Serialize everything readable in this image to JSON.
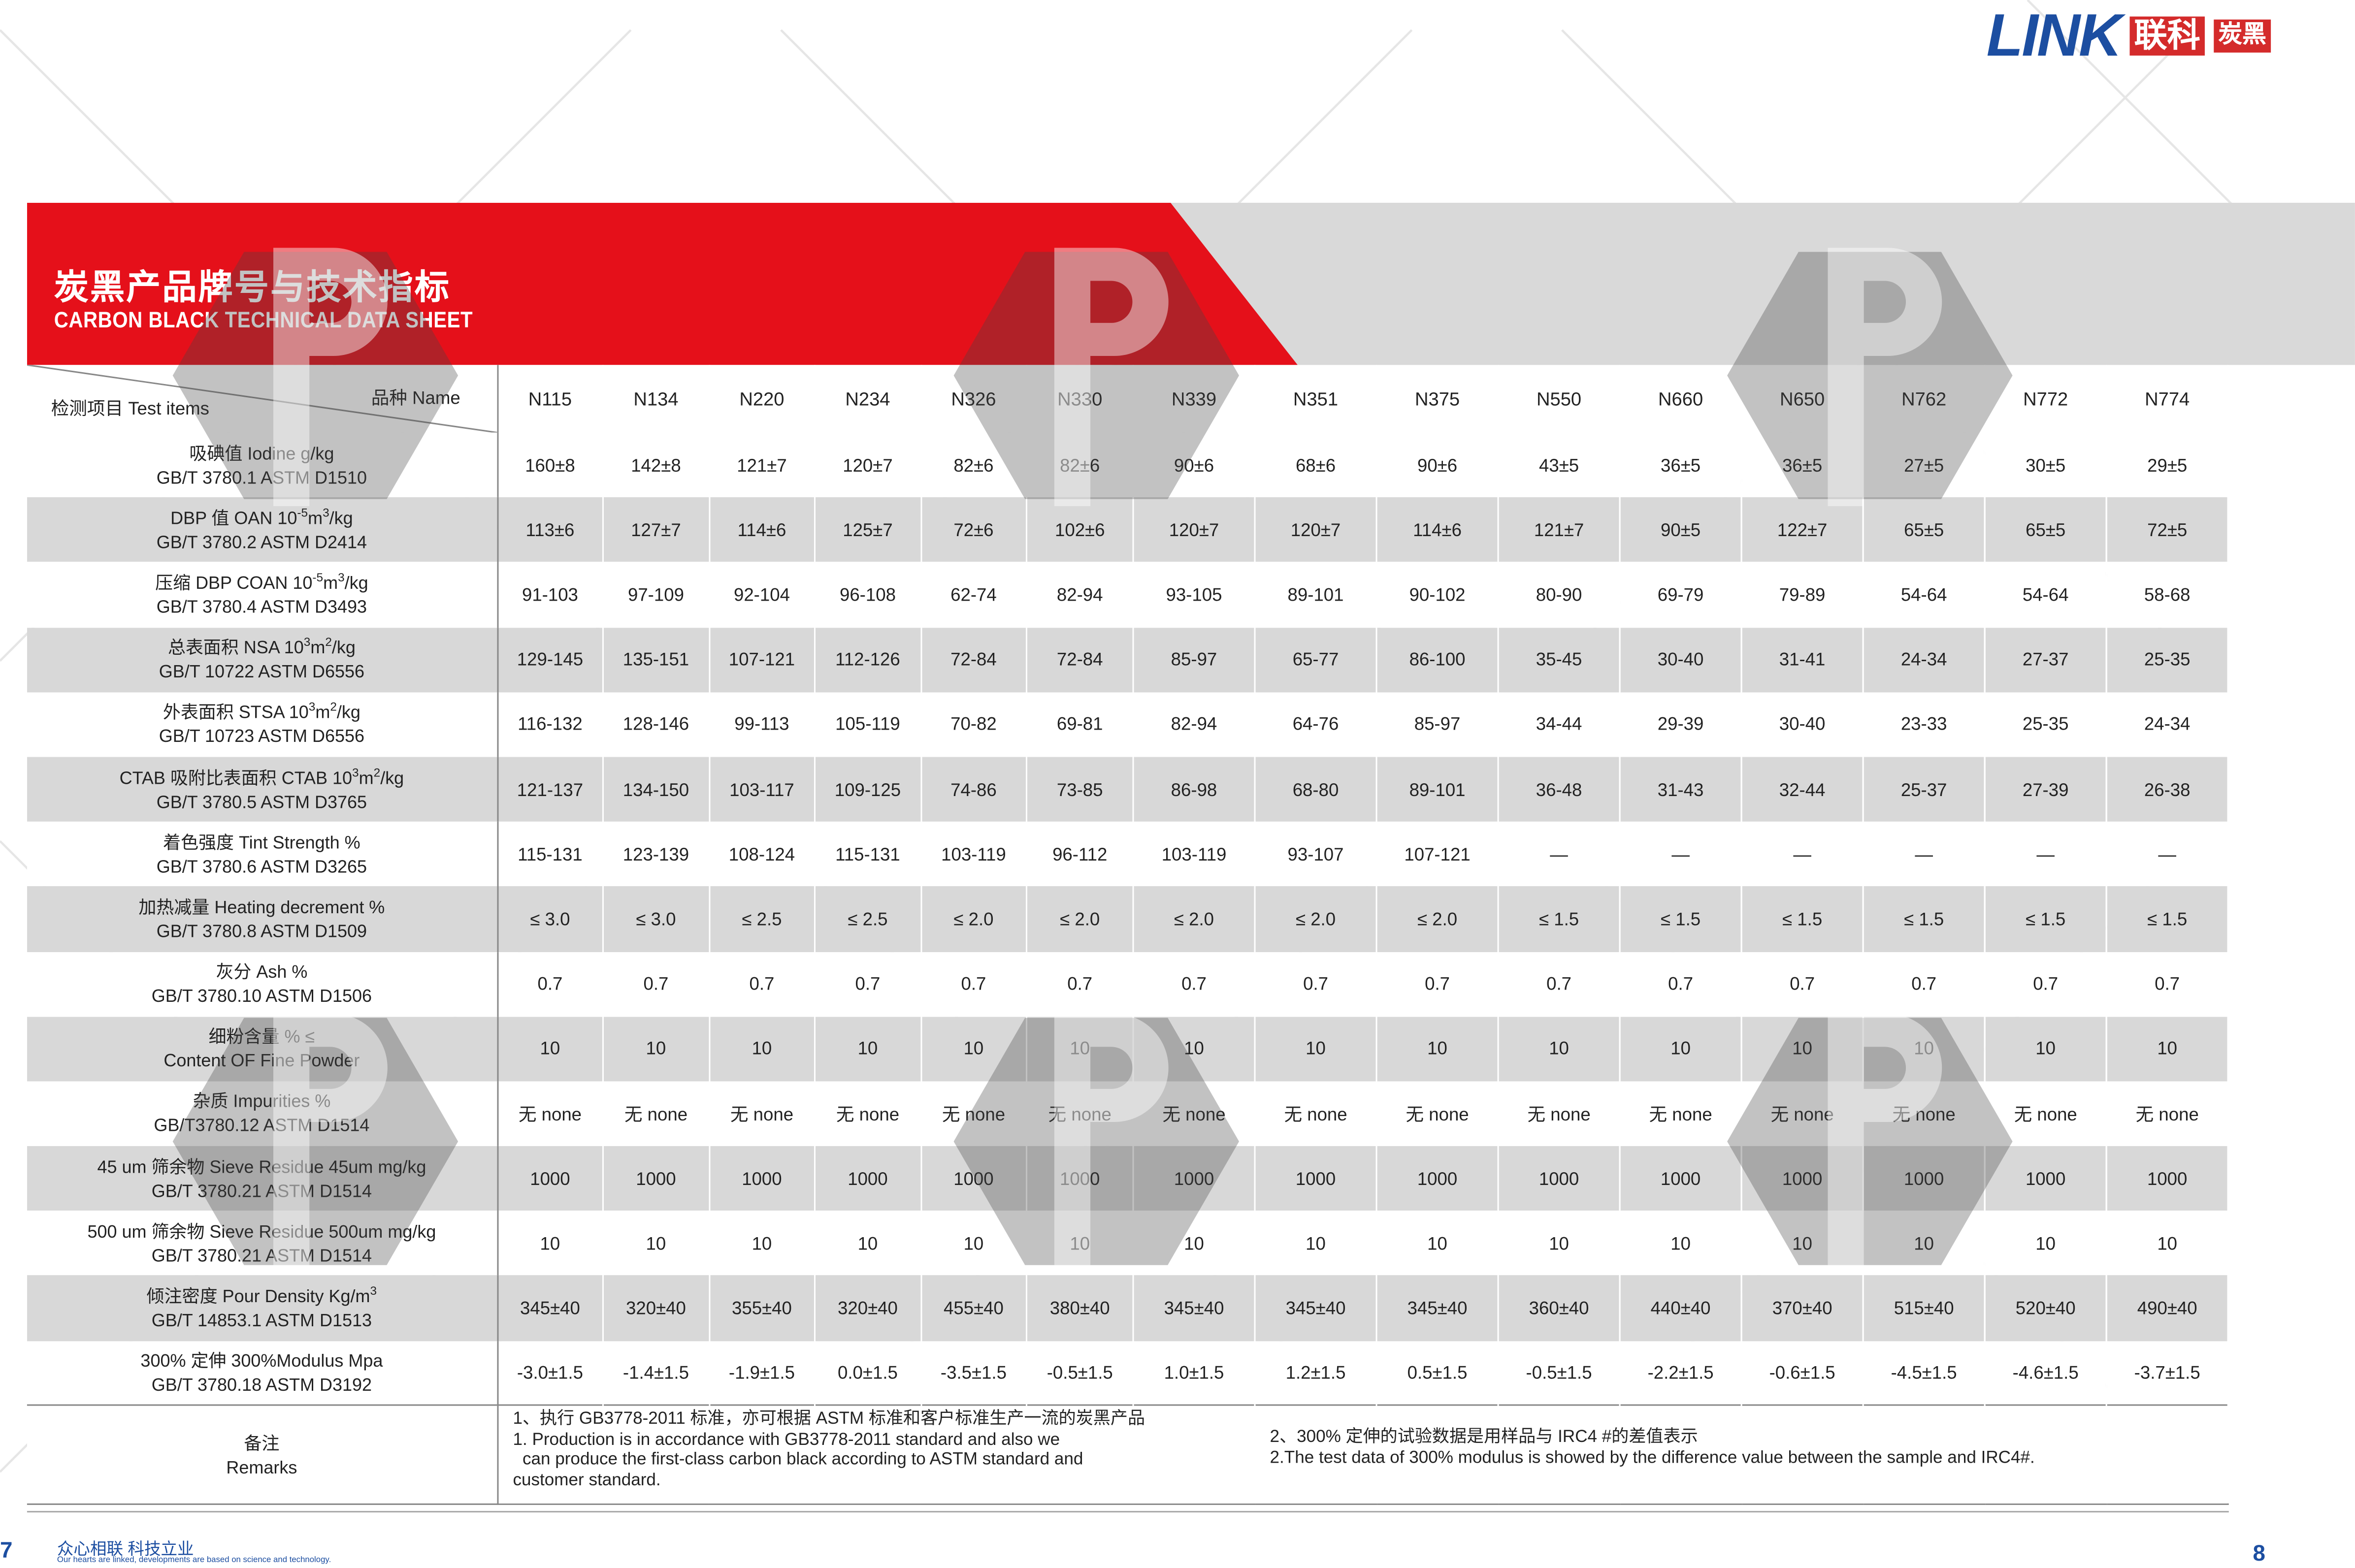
{
  "brand": {
    "latin": "LINK",
    "cn": "联科",
    "cn_small": "炭黑"
  },
  "title": {
    "cn": "炭黑产品牌号与技术指标",
    "en": "CARBON BLACK TECHNICAL DATA SHEET"
  },
  "table": {
    "corner": {
      "name": "品种 Name",
      "items": "检测项目  Test items"
    },
    "grades": [
      "N115",
      "N134",
      "N220",
      "N234",
      "N326",
      "N330",
      "N339",
      "N351",
      "N375",
      "N550",
      "N660",
      "N650",
      "N762",
      "N772",
      "N774"
    ],
    "rows": [
      {
        "l1": "吸碘值   Iodine   g/kg",
        "l2": "GB/T 3780.1  ASTM D1510",
        "values": [
          "160±8",
          "142±8",
          "121±7",
          "120±7",
          "82±6",
          "82±6",
          "90±6",
          "68±6",
          "90±6",
          "43±5",
          "36±5",
          "36±5",
          "27±5",
          "30±5",
          "29±5"
        ]
      },
      {
        "l1": "DBP 值   OAN    10",
        "s1": "-5",
        "m1": "m",
        "s2": "3",
        "t1": "/kg",
        "l2": "GB/T 3780.2  ASTM D2414",
        "values": [
          "113±6",
          "127±7",
          "114±6",
          "125±7",
          "72±6",
          "102±6",
          "120±7",
          "120±7",
          "114±6",
          "121±7",
          "90±5",
          "122±7",
          "65±5",
          "65±5",
          "72±5"
        ]
      },
      {
        "l1": "压缩 DBP   COAN   10",
        "s1": "-5",
        "m1": "m",
        "s2": "3",
        "t1": "/kg",
        "l2": "GB/T 3780.4  ASTM D3493",
        "values": [
          "91-103",
          "97-109",
          "92-104",
          "96-108",
          "62-74",
          "82-94",
          "93-105",
          "89-101",
          "90-102",
          "80-90",
          "69-79",
          "79-89",
          "54-64",
          "54-64",
          "58-68"
        ]
      },
      {
        "l1": "总表面积   NSA   10",
        "s1": "3",
        "m1": "m",
        "s2": "2",
        "t1": "/kg",
        "l2": "GB/T 10722  ASTM D6556",
        "values": [
          "129-145",
          "135-151",
          "107-121",
          "112-126",
          "72-84",
          "72-84",
          "85-97",
          "65-77",
          "86-100",
          "35-45",
          "30-40",
          "31-41",
          "24-34",
          "27-37",
          "25-35"
        ]
      },
      {
        "l1": "外表面积   STSA   10",
        "s1": "3",
        "m1": "m",
        "s2": "2",
        "t1": "/kg",
        "l2": "GB/T 10723  ASTM D6556",
        "values": [
          "116-132",
          "128-146",
          "99-113",
          "105-119",
          "70-82",
          "69-81",
          "82-94",
          "64-76",
          "85-97",
          "34-44",
          "29-39",
          "30-40",
          "23-33",
          "25-35",
          "24-34"
        ]
      },
      {
        "l1": "CTAB 吸附比表面积   CTAB     10",
        "s1": "3",
        "m1": "m",
        "s2": "2",
        "t1": "/kg",
        "l2": "GB/T 3780.5  ASTM D3765",
        "values": [
          "121-137",
          "134-150",
          "103-117",
          "109-125",
          "74-86",
          "73-85",
          "86-98",
          "68-80",
          "89-101",
          "36-48",
          "31-43",
          "32-44",
          "25-37",
          "27-39",
          "26-38"
        ]
      },
      {
        "l1": "着色强度   Tint Strength   %",
        "l2": "GB/T 3780.6   ASTM D3265",
        "values": [
          "115-131",
          "123-139",
          "108-124",
          "115-131",
          "103-119",
          "96-112",
          "103-119",
          "93-107",
          "107-121",
          "—",
          "—",
          "—",
          "—",
          "—",
          "—"
        ]
      },
      {
        "l1": "加热减量    Heating decrement %",
        "l2": "GB/T 3780.8   ASTM D1509",
        "values": [
          "≤ 3.0",
          "≤ 3.0",
          "≤ 2.5",
          "≤ 2.5",
          "≤ 2.0",
          "≤ 2.0",
          "≤ 2.0",
          "≤ 2.0",
          "≤ 2.0",
          "≤ 1.5",
          "≤ 1.5",
          "≤ 1.5",
          "≤ 1.5",
          "≤ 1.5",
          "≤ 1.5"
        ]
      },
      {
        "l1": "灰分     Ash    %",
        "l2": "GB/T 3780.10  ASTM D1506",
        "values": [
          "0.7",
          "0.7",
          "0.7",
          "0.7",
          "0.7",
          "0.7",
          "0.7",
          "0.7",
          "0.7",
          "0.7",
          "0.7",
          "0.7",
          "0.7",
          "0.7",
          "0.7"
        ]
      },
      {
        "l1": "细粉含量 % ≤",
        "l2": "Content OF Fine Powder",
        "values": [
          "10",
          "10",
          "10",
          "10",
          "10",
          "10",
          "10",
          "10",
          "10",
          "10",
          "10",
          "10",
          "10",
          "10",
          "10"
        ]
      },
      {
        "l1": "杂质   Impurities   %",
        "l2": "GB/T3780.12   ASTM D1514",
        "values": [
          "无 none",
          "无 none",
          "无 none",
          "无 none",
          "无 none",
          "无 none",
          "无 none",
          "无 none",
          "无 none",
          "无 none",
          "无 none",
          "无 none",
          "无 none",
          "无 none",
          "无 none"
        ]
      },
      {
        "l1": "45 um 筛余物   Sieve Residue 45um   mg/kg",
        "l2": "GB/T 3780.21   ASTM D1514",
        "values": [
          "1000",
          "1000",
          "1000",
          "1000",
          "1000",
          "1000",
          "1000",
          "1000",
          "1000",
          "1000",
          "1000",
          "1000",
          "1000",
          "1000",
          "1000"
        ]
      },
      {
        "l1": "500 um 筛余物   Sieve Residue 500um  mg/kg",
        "l2": "GB/T 3780.21   ASTM D1514",
        "values": [
          "10",
          "10",
          "10",
          "10",
          "10",
          "10",
          "10",
          "10",
          "10",
          "10",
          "10",
          "10",
          "10",
          "10",
          "10"
        ]
      },
      {
        "l1": "倾注密度   Pour Density   Kg/m",
        "s1": "3",
        "l2": "GB/T 14853.1    ASTM D1513",
        "values": [
          "345±40",
          "320±40",
          "355±40",
          "320±40",
          "455±40",
          "380±40",
          "345±40",
          "345±40",
          "345±40",
          "360±40",
          "440±40",
          "370±40",
          "515±40",
          "520±40",
          "490±40"
        ]
      },
      {
        "l1": "300% 定伸    300%Modulus    Mpa",
        "l2": "GB/T 3780.18  ASTM D3192",
        "values": [
          "-3.0±1.5",
          "-1.4±1.5",
          "-1.9±1.5",
          "0.0±1.5",
          "-3.5±1.5",
          "-0.5±1.5",
          "1.0±1.5",
          "1.2±1.5",
          "0.5±1.5",
          "-0.5±1.5",
          "-2.2±1.5",
          "-0.6±1.5",
          "-4.5±1.5",
          "-4.6±1.5",
          "-3.7±1.5"
        ]
      }
    ],
    "remarks": {
      "label_cn": "备注",
      "label_en": "Remarks",
      "left": [
        "1、执行 GB3778-2011 标准，亦可根据 ASTM 标准和客户标准生产一流的炭黑产品",
        "1. Production is in accordance with GB3778-2011 standard and also we",
        "  can produce the first-class carbon black according to ASTM standard and",
        "customer standard."
      ],
      "right": [
        "2、300% 定伸的试验数据是用样品与 IRC4 #的差值表示",
        "2.The test data of 300% modulus is showed by the difference value between the sample and IRC4#."
      ]
    }
  },
  "footer": {
    "page_left": "7",
    "slogan_cn": "众心相联 科技立业",
    "slogan_en": "Our hearts are linked, developments are based on science and technology.",
    "page_right": "8"
  },
  "colors": {
    "red": "#e5101a",
    "blue": "#1c4ea1",
    "stripe": "#d8d8d8"
  }
}
